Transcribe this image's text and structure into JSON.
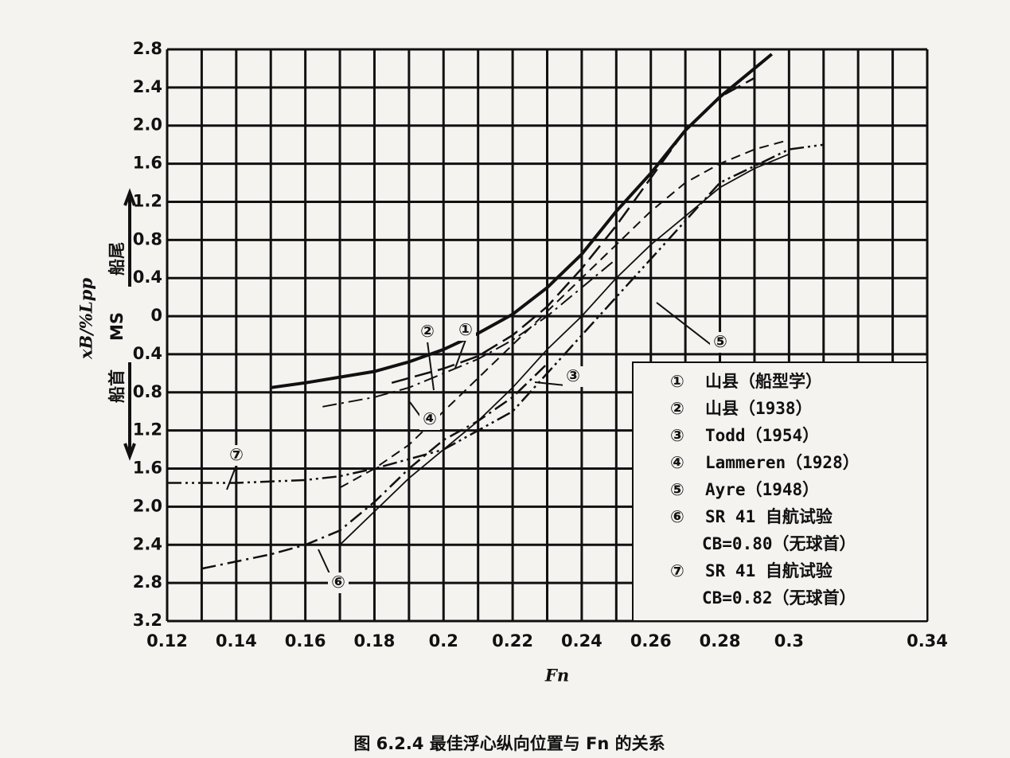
{
  "chart_data": {
    "type": "line",
    "title": "图 6.2.4 最佳浮心纵向位置与 Fn 的关系",
    "xlabel": "Fn",
    "ylabel": "xB/%Lpp",
    "ylabel_aft": "船尾",
    "ylabel_mid": "MS",
    "ylabel_fore": "船首",
    "xlim": [
      0.12,
      0.34
    ],
    "ylim": [
      -3.2,
      2.8
    ],
    "xticks": [
      0.12,
      0.14,
      0.16,
      0.18,
      0.2,
      0.22,
      0.24,
      0.26,
      0.28,
      0.3,
      0.34
    ],
    "xtick_labels_note": null,
    "xminorticks": [
      0.13,
      0.15,
      0.17,
      0.19,
      0.21,
      0.23,
      0.25,
      0.27,
      0.29,
      0.31,
      0.32,
      0.33
    ],
    "yticks": [
      2.8,
      2.4,
      {
        "value": 2,
        "label": "2.0"
      },
      1.6,
      1.2,
      0.8,
      0.4,
      0,
      {
        "value": -0.4,
        "label": "0.4"
      },
      {
        "value": -0.8,
        "label": "0.8"
      },
      {
        "value": -1.2,
        "label": "1.2"
      },
      {
        "value": -1.6,
        "label": "1.6"
      },
      {
        "value": -2,
        "label": "2.0"
      },
      {
        "value": -2.4,
        "label": "2.4"
      },
      {
        "value": -2.8,
        "label": "2.8"
      },
      {
        "value": -3.2,
        "label": "3.2"
      }
    ],
    "grid": true,
    "series": [
      {
        "label": "①",
        "name": "山县（船型学）",
        "color": "#111",
        "style": "solid",
        "width": 4,
        "x": [
          0.15,
          0.16,
          0.18,
          0.19,
          0.2,
          0.21,
          0.22,
          0.23,
          0.24,
          0.25,
          0.26,
          0.27,
          0.28,
          0.29,
          0.295
        ],
        "values": [
          -0.75,
          -0.7,
          -0.58,
          -0.48,
          -0.35,
          -0.18,
          0.02,
          0.3,
          0.65,
          1.1,
          1.5,
          1.95,
          2.3,
          2.6,
          2.75
        ]
      },
      {
        "label": "②",
        "name": "山县（1938）",
        "color": "#111",
        "style": "longdash",
        "width": 2.5,
        "x": [
          0.185,
          0.19,
          0.2,
          0.21,
          0.22,
          0.23,
          0.24,
          0.25,
          0.26,
          0.27,
          0.28,
          0.29
        ],
        "values": [
          -0.7,
          -0.65,
          -0.55,
          -0.42,
          -0.2,
          0.1,
          0.5,
          0.95,
          1.45,
          1.95,
          2.3,
          2.5
        ]
      },
      {
        "label": "③",
        "name": "Todd（1954）",
        "color": "#111",
        "style": "dashed",
        "width": 2,
        "x": [
          0.17,
          0.18,
          0.19,
          0.2,
          0.21,
          0.22,
          0.23,
          0.24,
          0.25,
          0.26,
          0.27,
          0.28,
          0.29,
          0.3
        ],
        "values": [
          -1.8,
          -1.6,
          -1.35,
          -1.0,
          -0.65,
          -0.3,
          0.05,
          0.4,
          0.75,
          1.1,
          1.4,
          1.6,
          1.75,
          1.85
        ]
      },
      {
        "label": "④",
        "name": "Lammeren（1928）",
        "color": "#111",
        "style": "dashdot",
        "width": 2,
        "x": [
          0.165,
          0.18,
          0.19,
          0.2,
          0.21,
          0.22,
          0.23,
          0.24,
          0.25
        ],
        "values": [
          -0.95,
          -0.85,
          -0.75,
          -0.6,
          -0.45,
          -0.25,
          0.0,
          0.3,
          0.6
        ]
      },
      {
        "label": "⑤",
        "name": "Ayre（1948）",
        "color": "#111",
        "style": "solid",
        "width": 1.8,
        "x": [
          0.17,
          0.18,
          0.19,
          0.2,
          0.21,
          0.22,
          0.23,
          0.24,
          0.25,
          0.26,
          0.27,
          0.28,
          0.29,
          0.3
        ],
        "values": [
          -2.4,
          -2.05,
          -1.7,
          -1.4,
          -1.1,
          -0.75,
          -0.35,
          0.0,
          0.4,
          0.75,
          1.05,
          1.35,
          1.55,
          1.7
        ]
      },
      {
        "label": "⑥",
        "name": "SR 41 自航试验",
        "name_line2": "CB=0.80（无球首）",
        "color": "#111",
        "style": "dashdot",
        "width": 2.5,
        "x": [
          0.13,
          0.15,
          0.16,
          0.17,
          0.18,
          0.19,
          0.2,
          0.21,
          0.22,
          0.23
        ],
        "values": [
          -2.65,
          -2.5,
          -2.4,
          -2.25,
          -1.95,
          -1.6,
          -1.3,
          -1.1,
          -0.85,
          -0.5
        ]
      },
      {
        "label": "⑦",
        "name": "SR 41 自航试验",
        "name_line2": "CB=0.82（无球首）",
        "color": "#111",
        "style": "dashdotdot",
        "width": 2.5,
        "x": [
          0.12,
          0.14,
          0.16,
          0.17,
          0.18,
          0.19,
          0.2,
          0.22,
          0.24,
          0.26,
          0.28,
          0.3,
          0.31
        ],
        "values": [
          -1.75,
          -1.75,
          -1.72,
          -1.68,
          -1.6,
          -1.5,
          -1.4,
          -1.0,
          -0.2,
          0.6,
          1.4,
          1.75,
          1.8
        ]
      }
    ]
  }
}
